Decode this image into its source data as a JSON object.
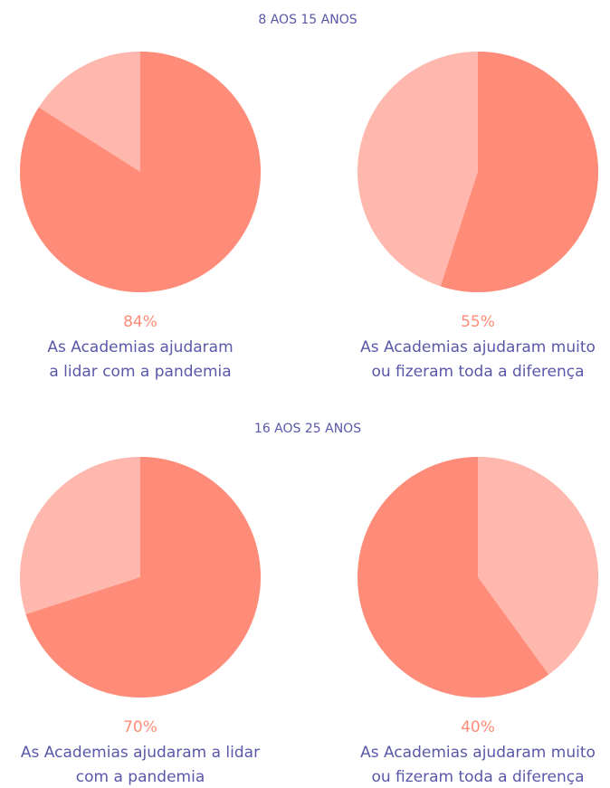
{
  "headings": [
    "8 AOS 15 ANOS",
    "16 AOS 25 ANOS"
  ],
  "chart_data": [
    {
      "type": "pie",
      "value": 84,
      "value_label": "84%",
      "color": "#ff8c78",
      "rest_color": "#ffb8ae",
      "label_lines": [
        "As Academias ajudaram",
        "a lidar com a pandemia"
      ]
    },
    {
      "type": "pie",
      "value": 55,
      "value_label": "55%",
      "color": "#ff8c78",
      "rest_color": "#ffb8ae",
      "label_lines": [
        "As Academias ajudaram muito",
        "ou fizeram toda a diferença"
      ]
    },
    {
      "type": "pie",
      "value": 70,
      "value_label": "70%",
      "color": "#ff8c78",
      "rest_color": "#ffb8ae",
      "label_lines": [
        "As Academias ajudaram a lidar",
        "com a pandemia"
      ]
    },
    {
      "type": "pie",
      "value": 40,
      "value_label": "40%",
      "color": "#ffb8ae",
      "rest_color": "#ff8c78",
      "label_lines": [
        "As Academias ajudaram muito",
        "ou fizeram toda a diferença"
      ]
    }
  ]
}
